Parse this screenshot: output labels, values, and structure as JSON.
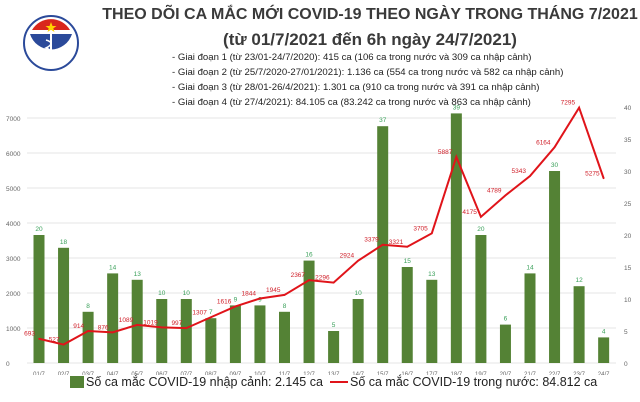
{
  "header": {
    "title_line1": "THEO DÕI CA MẮC MỚI COVID-19 THEO NGÀY TRONG THÁNG 7/2021",
    "title_line2": "(từ 01/7/2021 đến 6h ngày 24/7/2021)",
    "logo_text": "BỘ Y TẾ - MINISTRY OF HEALTH",
    "notes": [
      "- Giai đoạn 1 (từ 23/01-24/7/2020): 415 ca (106 ca trong nước và 309 ca nhập cảnh)",
      "- Giai đoạn 2 (từ 25/7/2020-27/01/2021): 1.136 ca (554 ca trong nước và 582 ca nhập cảnh)",
      "- Giai đoạn 3 (từ 28/01-26/4/2021): 1.301 ca (910 ca trong nước và 391 ca nhập cảnh)",
      "- Giai đoạn 4 (từ 27/4/2021): 84.105 ca (83.242 ca trong nước và 863 ca nhập cảnh)"
    ]
  },
  "chart_data": {
    "type": "bar+line",
    "categories": [
      "01/7",
      "02/7",
      "03/7",
      "04/7",
      "05/7",
      "06/7",
      "07/7",
      "08/7",
      "09/7",
      "10/7",
      "11/7",
      "12/7",
      "13/7",
      "14/7",
      "15/7",
      "16/7",
      "17/7",
      "18/7",
      "19/7",
      "20/7",
      "21/7",
      "22/7",
      "23/7",
      "24/7"
    ],
    "series": [
      {
        "name": "Số ca mắc COVID-19 nhập cảnh: 2.145 ca",
        "type": "bar",
        "axis": "right",
        "color": "#548235",
        "values": [
          20,
          18,
          8,
          14,
          13,
          10,
          10,
          7,
          9,
          9,
          8,
          16,
          5,
          10,
          37,
          15,
          13,
          39,
          20,
          6,
          14,
          30,
          12,
          4
        ]
      },
      {
        "name": "Số ca mắc COVID-19 trong nước: 84.812 ca",
        "type": "line",
        "axis": "left",
        "color": "#e0141a",
        "values": [
          693,
          527,
          914,
          876,
          1089,
          1019,
          997,
          1307,
          1616,
          1844,
          1945,
          2367,
          2296,
          2924,
          3379,
          3321,
          3705,
          5887,
          4175,
          4789,
          5343,
          6164,
          7295,
          5275
        ]
      }
    ],
    "left_axis": {
      "ticks": [
        0,
        1000,
        2000,
        3000,
        4000,
        5000,
        6000,
        7000
      ]
    },
    "right_axis": {
      "ticks": [
        0,
        5,
        10,
        15,
        20,
        25,
        30,
        35,
        40
      ]
    },
    "grid": true,
    "legend": "bottom"
  }
}
